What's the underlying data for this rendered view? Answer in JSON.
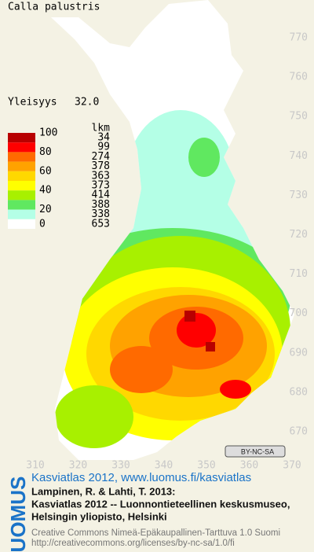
{
  "title": "Calla palustris",
  "frequency": {
    "label": "Yleisyys",
    "value": "32.0"
  },
  "legend": {
    "scale": [
      100,
      80,
      60,
      40,
      20,
      0
    ],
    "count_header": "lkm",
    "classes": [
      {
        "color": "#b80000",
        "count": 34
      },
      {
        "color": "#ff0000",
        "count": 99
      },
      {
        "color": "#ff6a00",
        "count": 274
      },
      {
        "color": "#ffa200",
        "count": 378
      },
      {
        "color": "#ffd800",
        "count": 363
      },
      {
        "color": "#ffff00",
        "count": 373
      },
      {
        "color": "#a8f000",
        "count": 414
      },
      {
        "color": "#60e860",
        "count": 388
      },
      {
        "color": "#b4ffe6",
        "count": 338
      },
      {
        "color": "#ffffff",
        "count": 653
      }
    ]
  },
  "x_ticks": [
    310,
    320,
    330,
    340,
    350,
    360,
    370
  ],
  "y_ticks": [
    770,
    760,
    750,
    740,
    730,
    720,
    710,
    700,
    690,
    680,
    670
  ],
  "license_badge": "BY-NC-SA",
  "logo": "LUOMUS",
  "atlas_link": "Kasviatlas 2012, www.luomus.fi/kasviatlas",
  "citation": [
    "Lampinen, R. & Lahti, T. 2013:",
    "Kasviatlas 2012 -- Luonnontieteellinen keskusmuseo,",
    "Helsingin yliopisto, Helsinki"
  ],
  "license": [
    "Creative Commons Nimeä-Epäkaupallinen-Tarttuva 1.0 Suomi",
    "http://creativecommons.org/licenses/by-nc-sa/1.0/fi"
  ]
}
